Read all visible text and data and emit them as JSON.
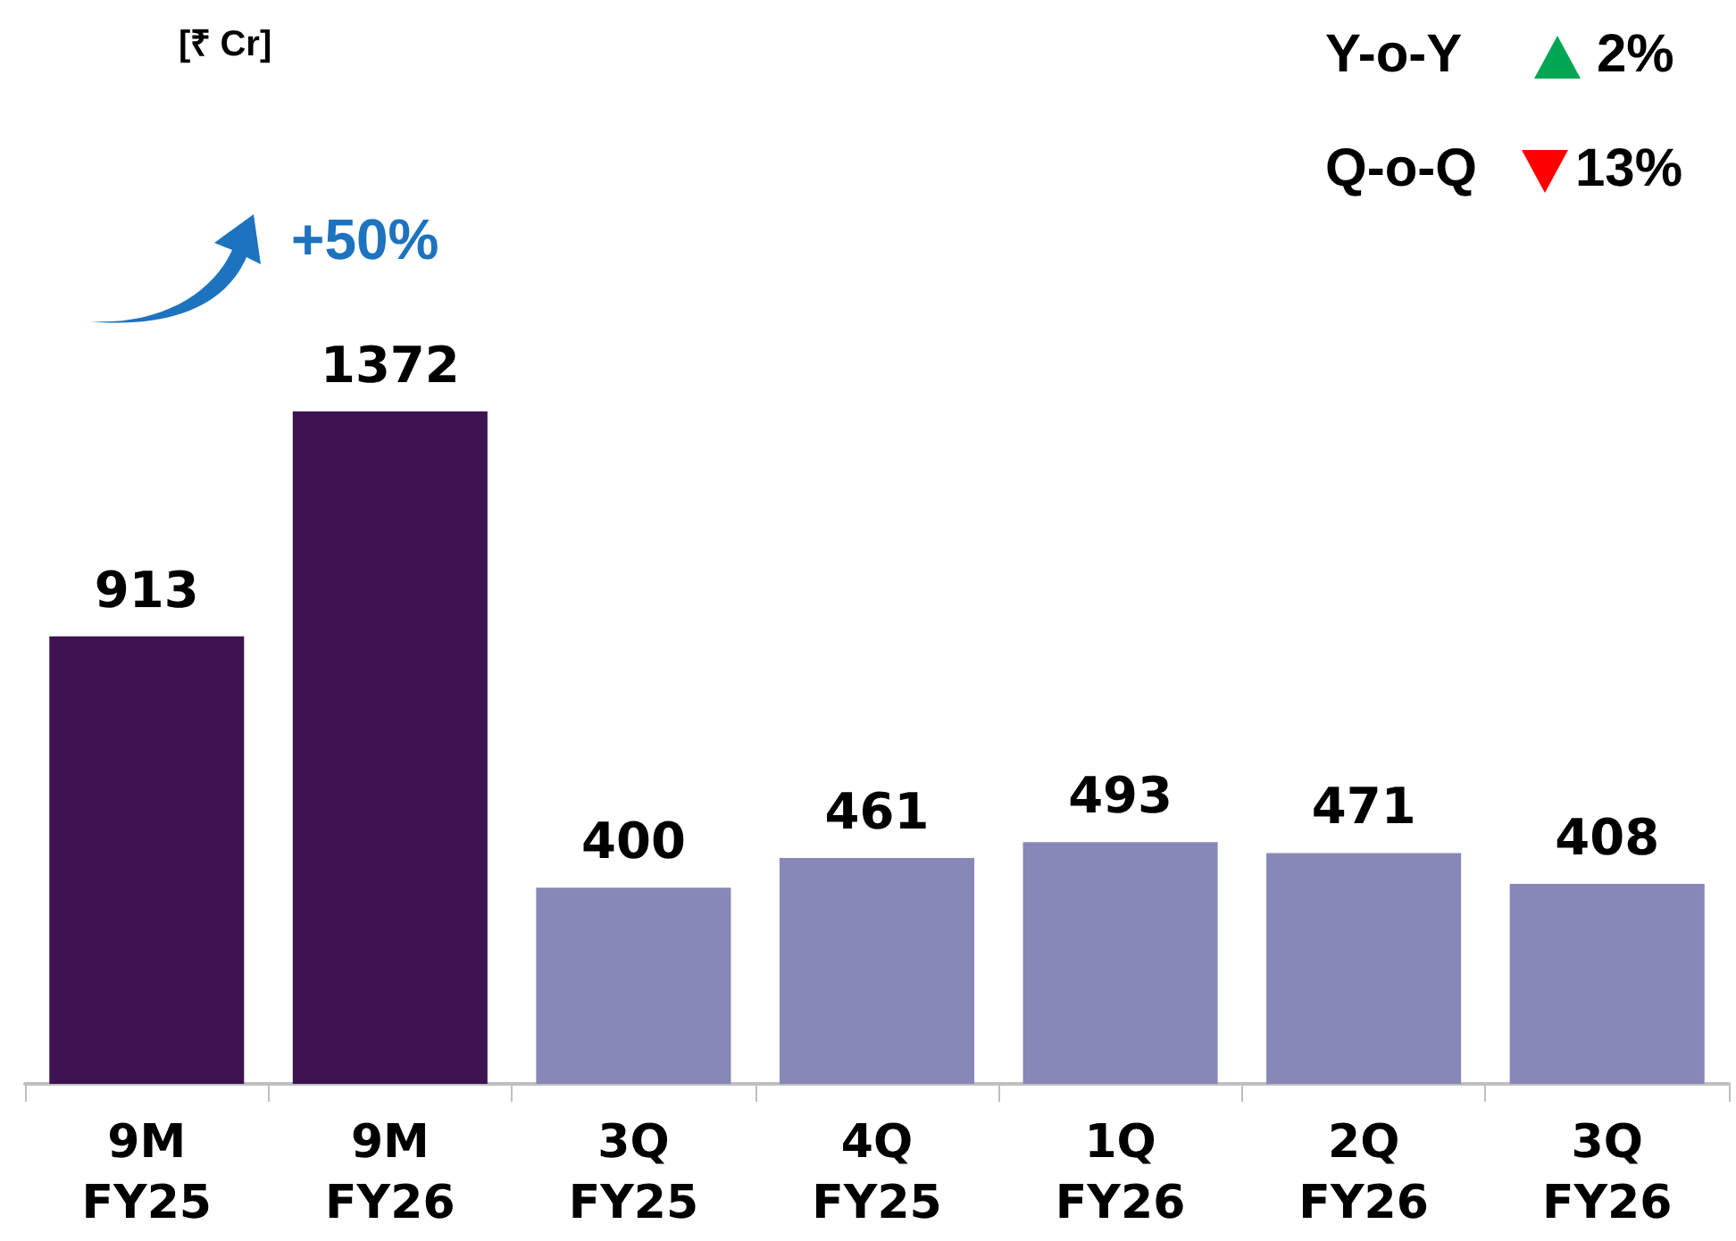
{
  "chart_data": {
    "type": "bar",
    "categories": [
      "9M FY25",
      "9M FY26",
      "3Q FY25",
      "4Q FY25",
      "1Q FY26",
      "2Q FY26",
      "3Q FY26"
    ],
    "values": [
      913,
      1372,
      400,
      461,
      493,
      471,
      408
    ],
    "colors": [
      "#3d1250",
      "#3d1250",
      "#8787b8",
      "#8787b8",
      "#8787b8",
      "#8787b8",
      "#8787b8"
    ],
    "data_labels": true,
    "annotations": [
      "[₹ Cr]",
      "+50%",
      "Y-o-Y",
      "2%",
      "Q-o-Q",
      "13%"
    ]
  }
}
